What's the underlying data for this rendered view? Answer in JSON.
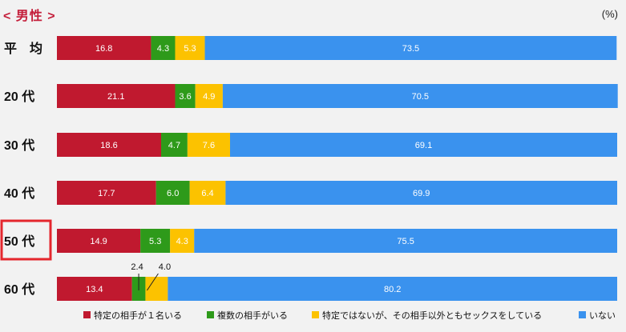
{
  "header": {
    "section_title": "< 男性 >",
    "unit": "(%)"
  },
  "colors": {
    "highlight_border": "#e4262d",
    "label_dark": "#ffffff",
    "label_light": "#ffffff"
  },
  "highlighted_category": "50 代",
  "chart_data": {
    "type": "bar",
    "orientation": "horizontal",
    "stacked": true,
    "categories": [
      "平　均",
      "20 代",
      "30 代",
      "40 代",
      "50 代",
      "60 代"
    ],
    "series": [
      {
        "name": "特定の相手が１名いる",
        "color": "#c0192f",
        "values": [
          16.8,
          21.1,
          18.6,
          17.7,
          14.9,
          13.4
        ]
      },
      {
        "name": "複数の相手がいる",
        "color": "#2e9a1a",
        "values": [
          4.3,
          3.6,
          4.7,
          6.0,
          5.3,
          2.4
        ]
      },
      {
        "name": "特定ではないが、その相手以外ともセックスをしている",
        "color": "#fcc200",
        "values": [
          5.3,
          4.9,
          7.6,
          6.4,
          4.3,
          4.0
        ]
      },
      {
        "name": "いない",
        "color": "#3a92ee",
        "values": [
          73.5,
          70.5,
          69.1,
          69.9,
          75.5,
          80.2
        ]
      }
    ],
    "data_labels": [
      [
        "16.8",
        "4.3",
        "5.3",
        "73.5"
      ],
      [
        "21.1",
        "3.6",
        "4.9",
        "70.5"
      ],
      [
        "18.6",
        "4.7",
        "7.6",
        "69.1"
      ],
      [
        "17.7",
        "6.0",
        "6.4",
        "69.9"
      ],
      [
        "14.9",
        "5.3",
        "4.3",
        "75.5"
      ],
      [
        "13.4",
        "2.4",
        "4.0",
        "80.2"
      ]
    ],
    "callout_labels": [
      {
        "category_index": 5,
        "series_index": 1,
        "text": "2.4"
      },
      {
        "category_index": 5,
        "series_index": 2,
        "text": "4.0"
      }
    ],
    "xlim": [
      0,
      100
    ],
    "legend_position": "bottom"
  }
}
